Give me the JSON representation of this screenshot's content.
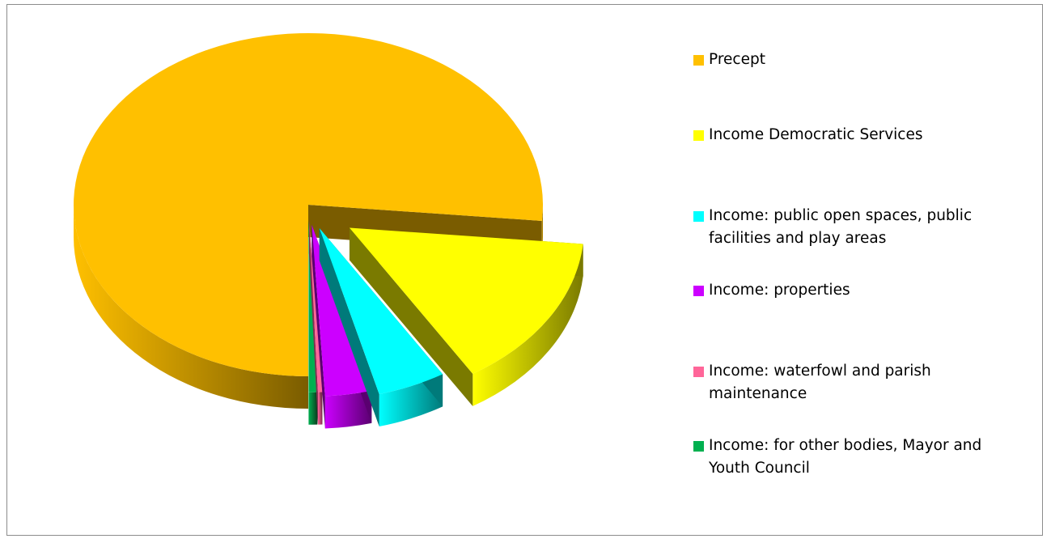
{
  "chart_data": {
    "type": "pie",
    "title": "",
    "style": "3d-exploded",
    "legend_position": "right",
    "categories": [
      "Precept",
      "Income Democratic Services",
      "Income:  public open spaces, public facilities and play areas",
      "Income:  properties",
      "Income:  waterfowl and parish maintenance",
      "Income: for other bodies, Mayor and Youth Council"
    ],
    "values": [
      76.5,
      14.7,
      4.7,
      3.2,
      0.3,
      0.6
    ],
    "colors": [
      "#FFC000",
      "#FFFF00",
      "#00FFFF",
      "#CC00FF",
      "#FF6699",
      "#00B050"
    ],
    "side_colors": [
      "#7A5C00",
      "#7A7A00",
      "#007A7A",
      "#5A0070",
      "#803050",
      "#0B3D1E"
    ]
  }
}
